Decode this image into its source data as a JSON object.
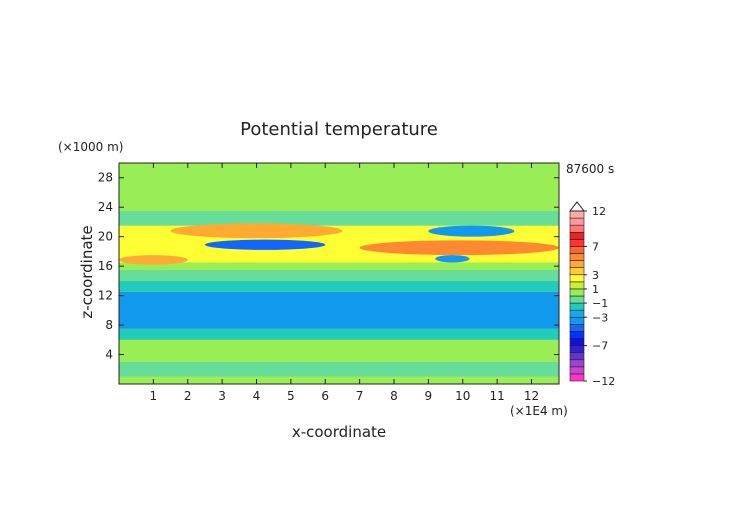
{
  "chart_data": {
    "type": "heatmap",
    "title": "Potential temperature",
    "xlabel": "x-coordinate",
    "ylabel": "z-coordinate",
    "x_unit": "(×1E4 m)",
    "y_unit": "(×1000 m)",
    "time_label": "87600 s",
    "xlim": [
      0,
      12.8
    ],
    "ylim": [
      0,
      30
    ],
    "x_ticks": [
      1,
      2,
      3,
      4,
      5,
      6,
      7,
      8,
      9,
      10,
      11,
      12
    ],
    "y_ticks": [
      4,
      8,
      12,
      16,
      20,
      24,
      28
    ],
    "legend": {
      "placement": "right",
      "levels": [
        -12,
        -11,
        -10,
        -9,
        -8,
        -7,
        -6,
        -5,
        -4,
        -3,
        -2,
        -1,
        0,
        1,
        2,
        3,
        4,
        5,
        6,
        7,
        8,
        9,
        10,
        11,
        12
      ],
      "tick_labels": [
        "12",
        "7",
        "3",
        "1",
        "−1",
        "−3",
        "−7",
        "−12"
      ],
      "tick_values": [
        12,
        7,
        3,
        1,
        -1,
        -3,
        -7,
        -12
      ],
      "colors": [
        "#ff33cc",
        "#cc44cc",
        "#9944cc",
        "#6633cc",
        "#3322cc",
        "#1111dd",
        "#0033ff",
        "#1166ff",
        "#1199ee",
        "#11aaee",
        "#22ccbb",
        "#66dd99",
        "#99ee55",
        "#ccee33",
        "#ffff33",
        "#ffcc33",
        "#ffaa33",
        "#ff8833",
        "#ff6633",
        "#ff3333",
        "#ee2222",
        "#ff7777",
        "#ff9999",
        "#ffaaaa"
      ]
    },
    "bands": [
      {
        "z": [
          0,
          1
        ],
        "value": 0.3
      },
      {
        "z": [
          1,
          3
        ],
        "value": -0.3
      },
      {
        "z": [
          3,
          6
        ],
        "value": 0.2
      },
      {
        "z": [
          6,
          7.5
        ],
        "value": -1.4
      },
      {
        "z": [
          7.5,
          12.5
        ],
        "value": -3.4
      },
      {
        "z": [
          12.5,
          14
        ],
        "value": -1.8
      },
      {
        "z": [
          14,
          15.5
        ],
        "value": -0.5
      },
      {
        "z": [
          15.5,
          16.5
        ],
        "value": 0.5
      },
      {
        "z": [
          16.5,
          21.5
        ],
        "value": 2.5
      },
      {
        "z": [
          21.5,
          23.5
        ],
        "value": -0.5
      },
      {
        "z": [
          23.5,
          26
        ],
        "value": 0.3
      },
      {
        "z": [
          26,
          30
        ],
        "value": 0.8
      }
    ],
    "features": [
      {
        "x": [
          1.5,
          6.5
        ],
        "z": [
          19.8,
          21.8
        ],
        "value": 4.2
      },
      {
        "x": [
          2.5,
          6
        ],
        "z": [
          18.2,
          19.6
        ],
        "value": -4.5
      },
      {
        "x": [
          7,
          12.8
        ],
        "z": [
          17.5,
          19.5
        ],
        "value": 5
      },
      {
        "x": [
          9,
          11.5
        ],
        "z": [
          20,
          21.5
        ],
        "value": -3.8
      },
      {
        "x": [
          9.2,
          10.2
        ],
        "z": [
          16.5,
          17.5
        ],
        "value": -3.5
      },
      {
        "x": [
          0,
          2
        ],
        "z": [
          16.2,
          17.5
        ],
        "value": 4
      }
    ]
  }
}
